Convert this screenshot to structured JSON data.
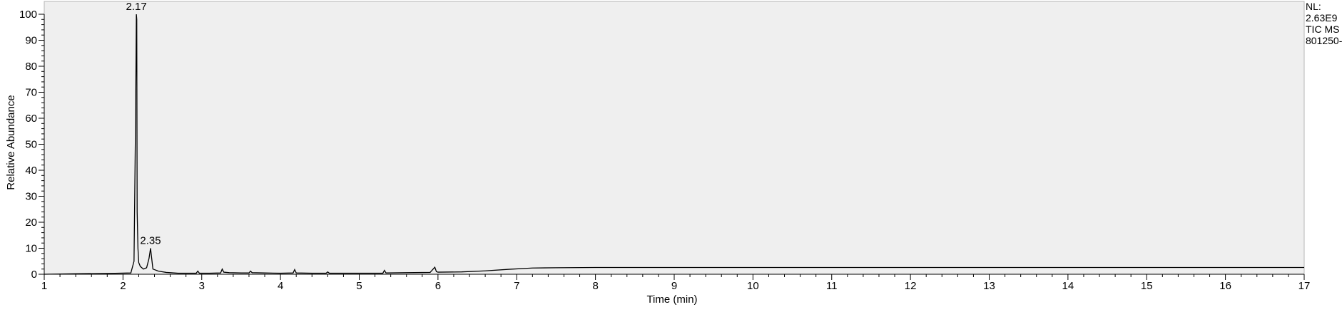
{
  "chart_data": {
    "type": "line",
    "title": "",
    "xlabel": "Time (min)",
    "ylabel": "Relative Abundance",
    "xlim": [
      1,
      17
    ],
    "ylim": [
      0,
      100
    ],
    "x_ticks": [
      1,
      2,
      3,
      4,
      5,
      6,
      7,
      8,
      9,
      10,
      11,
      12,
      13,
      14,
      15,
      16,
      17
    ],
    "y_ticks": [
      0,
      10,
      20,
      30,
      40,
      50,
      60,
      70,
      80,
      90,
      100
    ],
    "series": [
      {
        "x": [
          1.0,
          1.4,
          1.8,
          2.1,
          2.14,
          2.16,
          2.17,
          2.175,
          2.18,
          2.19,
          2.2,
          2.22,
          2.26,
          2.3,
          2.33,
          2.35,
          2.365,
          2.38,
          2.45,
          2.55,
          2.7,
          2.93,
          2.95,
          2.97,
          3.1,
          3.24,
          3.26,
          3.28,
          3.35,
          3.5,
          3.6,
          3.62,
          3.64,
          3.8,
          4.0,
          4.16,
          4.18,
          4.2,
          4.4,
          4.58,
          4.6,
          4.62,
          5.0,
          5.3,
          5.32,
          5.34,
          5.6,
          5.9,
          5.96,
          5.98,
          6.0,
          6.3,
          6.6,
          6.9,
          7.2,
          7.5,
          8.0,
          9.0,
          10.0,
          11.0,
          12.0,
          13.0,
          14.0,
          15.0,
          16.0,
          17.0
        ],
        "y": [
          0.0,
          0.2,
          0.3,
          0.5,
          5.0,
          60.0,
          100.0,
          98.0,
          24.0,
          10.0,
          4.5,
          3.0,
          2.0,
          2.5,
          6.0,
          10.0,
          6.0,
          2.0,
          1.2,
          0.7,
          0.4,
          0.4,
          1.2,
          0.4,
          0.4,
          0.5,
          2.0,
          0.8,
          0.6,
          0.5,
          0.5,
          1.2,
          0.6,
          0.5,
          0.4,
          0.5,
          1.8,
          0.5,
          0.4,
          0.4,
          0.9,
          0.4,
          0.4,
          0.4,
          1.5,
          0.5,
          0.6,
          0.7,
          2.7,
          1.0,
          0.8,
          0.9,
          1.3,
          1.9,
          2.4,
          2.5,
          2.6,
          2.6,
          2.6,
          2.6,
          2.6,
          2.6,
          2.6,
          2.6,
          2.6,
          2.6
        ]
      }
    ],
    "annotations": [
      {
        "x": 2.17,
        "y": 100,
        "text": "2.17"
      },
      {
        "x": 2.35,
        "y": 10,
        "text": "2.35"
      }
    ],
    "info": [
      "NL:",
      "2.63E9",
      "TIC  MS",
      "801250-"
    ],
    "colors": {
      "plot_background": "#efefef",
      "line": "#000000"
    }
  }
}
